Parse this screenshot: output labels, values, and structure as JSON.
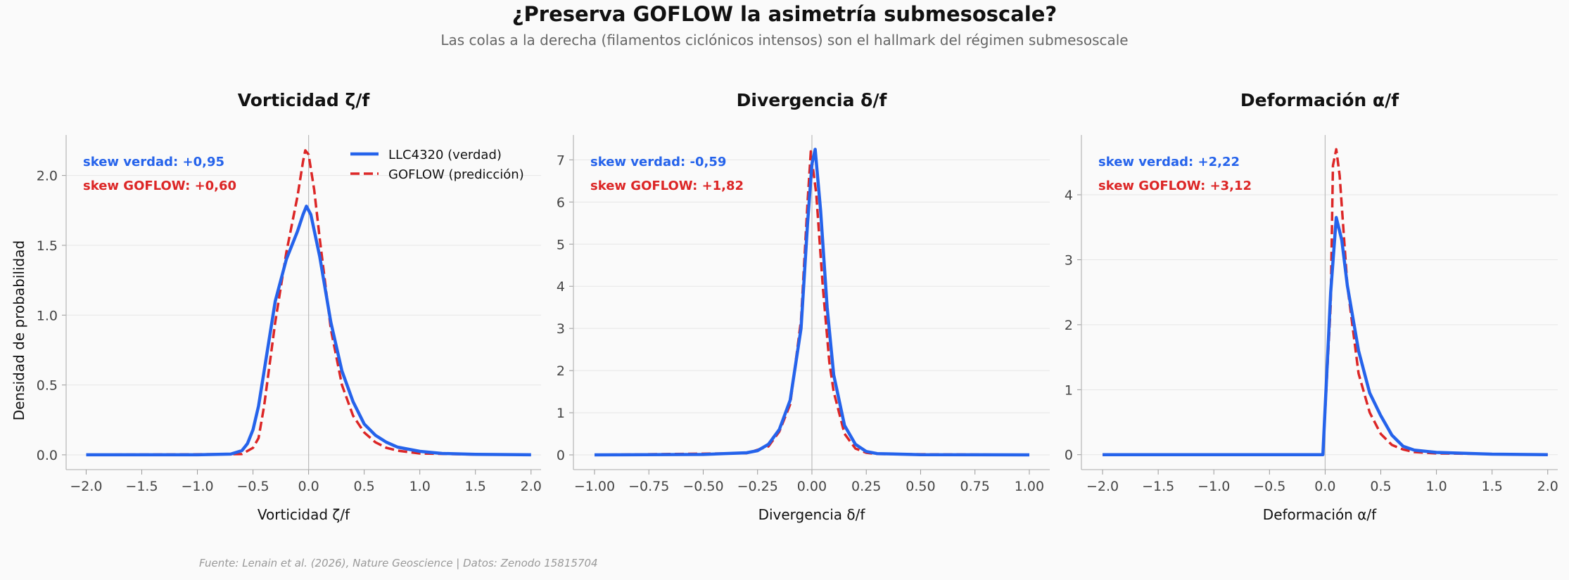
{
  "title": "¿Preserva GOFLOW la asimetría submesoscale?",
  "subtitle": "Las colas a la derecha (filamentos ciclónicos intensos) son el hallmark del régimen submesoscale",
  "footer": "Fuente: Lenain et al. (2026), Nature Geoscience | Datos: Zenodo 15815704",
  "ylabel": "Densidad de probabilidad",
  "colors": {
    "truth": "#2563eb",
    "pred": "#dc2626",
    "background": "#fafafa"
  },
  "legend": {
    "truth": "LLC4320 (verdad)",
    "pred": "GOFLOW (predicción)",
    "placement": "top-right of first panel"
  },
  "chart_data": [
    {
      "type": "line",
      "title": "Vorticidad ζ/f",
      "xlabel": "Vorticidad ζ/f",
      "ylabel": "Densidad de probabilidad",
      "xlim": [
        -2.18,
        2.09
      ],
      "ylim": [
        -0.106,
        2.29
      ],
      "xticks": [
        "−2.0",
        "−1.5",
        "−1.0",
        "−0.5",
        "0.0",
        "0.5",
        "1.0",
        "1.5",
        "2.0"
      ],
      "xtick_values": [
        -2,
        -1.5,
        -1,
        -0.5,
        0,
        0.5,
        1,
        1.5,
        2
      ],
      "yticks": [
        "0.0",
        "0.5",
        "1.0",
        "1.5",
        "2.0"
      ],
      "ytick_values": [
        0,
        0.5,
        1,
        1.5,
        2
      ],
      "grid": "horizontal",
      "skew_truth": "skew verdad: +0,95",
      "skew_pred": "skew GOFLOW: +0,60",
      "series": [
        {
          "name": "LLC4320 (verdad)",
          "style": "solid",
          "x": [
            -2,
            -1,
            -0.7,
            -0.6,
            -0.55,
            -0.5,
            -0.45,
            -0.4,
            -0.35,
            -0.3,
            -0.25,
            -0.2,
            -0.1,
            -0.05,
            -0.02,
            0.02,
            0.1,
            0.2,
            0.3,
            0.4,
            0.5,
            0.6,
            0.7,
            0.8,
            1.0,
            1.2,
            1.5,
            2.0
          ],
          "y": [
            0,
            0,
            0.005,
            0.03,
            0.08,
            0.18,
            0.35,
            0.6,
            0.85,
            1.1,
            1.25,
            1.4,
            1.6,
            1.72,
            1.78,
            1.72,
            1.42,
            0.95,
            0.6,
            0.38,
            0.22,
            0.14,
            0.09,
            0.055,
            0.025,
            0.01,
            0.003,
            0
          ]
        },
        {
          "name": "GOFLOW (predicción)",
          "style": "dashed",
          "x": [
            -2,
            -0.6,
            -0.5,
            -0.45,
            -0.4,
            -0.35,
            -0.3,
            -0.25,
            -0.2,
            -0.1,
            -0.05,
            -0.03,
            0,
            0.05,
            0.1,
            0.2,
            0.3,
            0.4,
            0.5,
            0.6,
            0.7,
            0.8,
            1.0,
            1.5,
            2.0
          ],
          "y": [
            0,
            0.005,
            0.05,
            0.12,
            0.35,
            0.65,
            0.95,
            1.2,
            1.45,
            1.85,
            2.1,
            2.18,
            2.15,
            1.9,
            1.55,
            0.9,
            0.5,
            0.28,
            0.16,
            0.09,
            0.05,
            0.03,
            0.01,
            0.002,
            0
          ]
        }
      ]
    },
    {
      "type": "line",
      "title": "Divergencia δ/f",
      "xlabel": "Divergencia δ/f",
      "xlim": [
        -1.097,
        1.094
      ],
      "ylim": [
        -0.35,
        7.59
      ],
      "xticks": [
        "−1.00",
        "−0.75",
        "−0.50",
        "−0.25",
        "0.00",
        "0.25",
        "0.50",
        "0.75",
        "1.00"
      ],
      "xtick_values": [
        -1,
        -0.75,
        -0.5,
        -0.25,
        0,
        0.25,
        0.5,
        0.75,
        1
      ],
      "yticks": [
        "0",
        "1",
        "2",
        "3",
        "4",
        "5",
        "6",
        "7"
      ],
      "ytick_values": [
        0,
        1,
        2,
        3,
        4,
        5,
        6,
        7
      ],
      "grid": "horizontal",
      "skew_truth": "skew verdad: -0,59",
      "skew_pred": "skew GOFLOW: +1,82",
      "series": [
        {
          "name": "LLC4320 (verdad)",
          "style": "solid",
          "x": [
            -1,
            -0.5,
            -0.3,
            -0.25,
            -0.2,
            -0.15,
            -0.1,
            -0.05,
            -0.02,
            0,
            0.015,
            0.04,
            0.07,
            0.1,
            0.15,
            0.2,
            0.25,
            0.3,
            0.5,
            1
          ],
          "y": [
            0,
            0.01,
            0.05,
            0.1,
            0.25,
            0.6,
            1.3,
            3.0,
            5.5,
            6.9,
            7.25,
            5.8,
            3.5,
            1.9,
            0.7,
            0.25,
            0.08,
            0.03,
            0.005,
            0
          ]
        },
        {
          "name": "GOFLOW (predicción)",
          "style": "dashed",
          "x": [
            -1,
            -0.3,
            -0.2,
            -0.15,
            -0.1,
            -0.05,
            -0.02,
            -0.005,
            0.02,
            0.05,
            0.08,
            0.1,
            0.15,
            0.2,
            0.25,
            0.3,
            1
          ],
          "y": [
            0,
            0.04,
            0.2,
            0.55,
            1.2,
            3.2,
            6.0,
            7.2,
            6.2,
            4.0,
            2.2,
            1.5,
            0.5,
            0.15,
            0.05,
            0.02,
            0
          ]
        }
      ]
    },
    {
      "type": "line",
      "title": "Deformación α/f",
      "xlabel": "Deformación α/f",
      "xlim": [
        -2.19,
        2.09
      ],
      "ylim": [
        -0.23,
        4.92
      ],
      "xticks": [
        "−2.0",
        "−1.5",
        "−1.0",
        "−0.5",
        "0.0",
        "0.5",
        "1.0",
        "1.5",
        "2.0"
      ],
      "xtick_values": [
        -2,
        -1.5,
        -1,
        -0.5,
        0,
        0.5,
        1,
        1.5,
        2
      ],
      "yticks": [
        "0",
        "1",
        "2",
        "3",
        "4"
      ],
      "ytick_values": [
        0,
        1,
        2,
        3,
        4
      ],
      "grid": "horizontal",
      "skew_truth": "skew verdad: +2,22",
      "skew_pred": "skew GOFLOW: +3,12",
      "series": [
        {
          "name": "LLC4320 (verdad)",
          "style": "solid",
          "x": [
            -2,
            -0.02,
            0.05,
            0.1,
            0.15,
            0.2,
            0.3,
            0.4,
            0.5,
            0.6,
            0.7,
            0.8,
            1.0,
            1.5,
            2.0
          ],
          "y": [
            0,
            0,
            2.5,
            3.65,
            3.3,
            2.6,
            1.6,
            0.95,
            0.6,
            0.3,
            0.13,
            0.07,
            0.035,
            0.008,
            0
          ]
        },
        {
          "name": "GOFLOW (predicción)",
          "style": "dashed",
          "x": [
            -2,
            -0.02,
            0.05,
            0.07,
            0.1,
            0.13,
            0.2,
            0.3,
            0.4,
            0.5,
            0.6,
            0.7,
            0.8,
            1.0,
            2.0
          ],
          "y": [
            0,
            0,
            2.3,
            4.45,
            4.7,
            4.3,
            2.6,
            1.25,
            0.65,
            0.32,
            0.15,
            0.08,
            0.04,
            0.02,
            0
          ]
        }
      ]
    }
  ]
}
